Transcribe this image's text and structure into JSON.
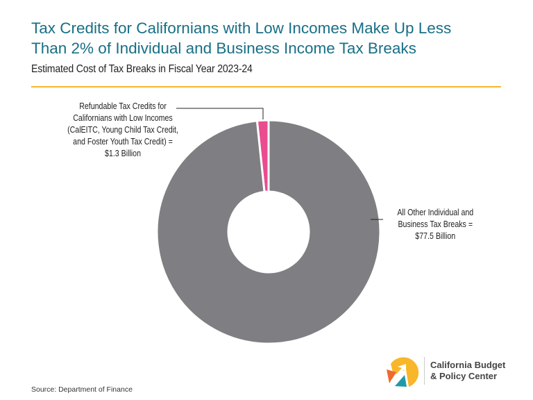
{
  "header": {
    "title_line1": "Tax Credits for Californians with Low Incomes Make Up Less",
    "title_line2": "Than 2% of Individual and Business Income Tax Breaks",
    "subtitle": "Estimated Cost of Tax Breaks in Fiscal Year 2023-24"
  },
  "chart_data": {
    "type": "pie",
    "donut": true,
    "title": "Estimated Cost of Tax Breaks in Fiscal Year 2023-24",
    "units": "Billion $",
    "slices": [
      {
        "name": "Refundable Tax Credits for Californians with Low Incomes (CalEITC, Young Child Tax Credit, and Foster Youth Tax Credit)",
        "value": 1.3,
        "color": "#ea4c8f",
        "label_lines": [
          "Refundable Tax Credits for",
          "Californians with Low Incomes",
          "(CalEITC, Young Child Tax Credit,",
          "and Foster Youth Tax Credit) =",
          "$1.3 Billion"
        ]
      },
      {
        "name": "All Other Individual and Business Tax Breaks",
        "value": 77.5,
        "color": "#7f7e82",
        "label_lines": [
          "All Other Individual and",
          "Business Tax Breaks =",
          "$77.5 Billion"
        ]
      }
    ]
  },
  "footer": {
    "source": "Source: Department of Finance",
    "logo_line1": "California Budget",
    "logo_line2": "& Policy Center"
  },
  "colors": {
    "title": "#176f86",
    "rule": "#f5b730",
    "logo_yellow": "#f8b62a",
    "logo_orange": "#ef6a2c",
    "logo_teal": "#1f9aa9"
  }
}
